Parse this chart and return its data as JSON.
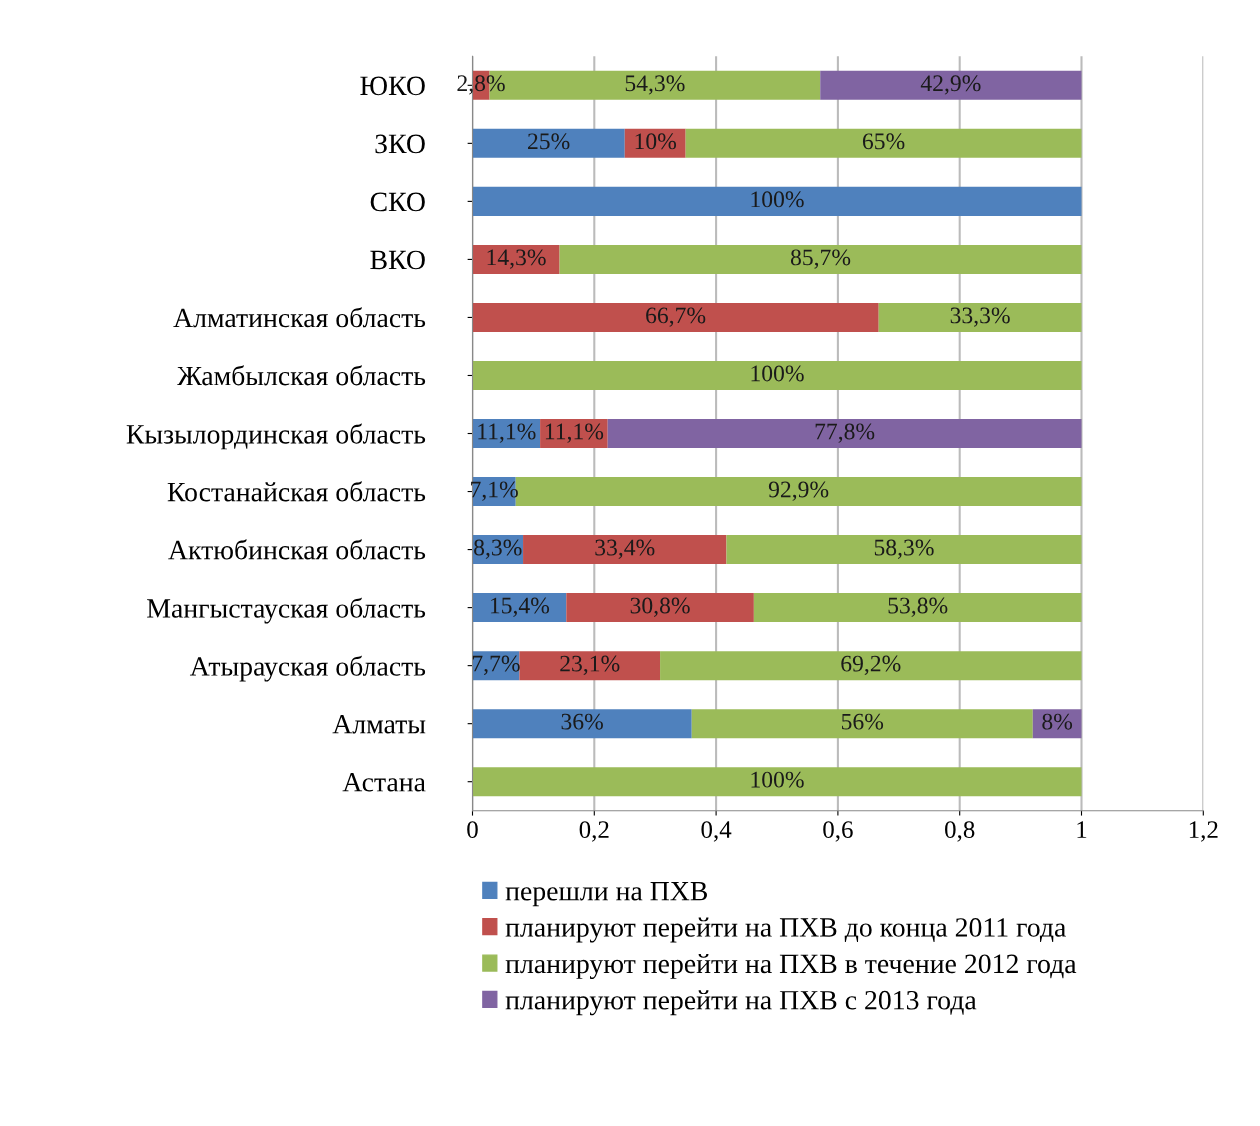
{
  "chart_data": {
    "type": "bar",
    "orientation": "horizontal",
    "stacked": true,
    "grid": "x",
    "legend": "bottom",
    "categories": [
      "ЮКО",
      "ЗКО",
      "СКО",
      "ВКО",
      "Алматинская область",
      "Жамбылская область",
      "Кызылординская область",
      "Костанайская область",
      "Актюбинская область",
      "Мангыстауская область",
      "Атырауская область",
      "Алматы",
      "Астана"
    ],
    "xlim": [
      0,
      1.2
    ],
    "xticks": [
      {
        "value": 0,
        "label": "0"
      },
      {
        "value": 0.2,
        "label": "0,2"
      },
      {
        "value": 0.4,
        "label": "0,4"
      },
      {
        "value": 0.6,
        "label": "0,6"
      },
      {
        "value": 0.8,
        "label": "0,8"
      },
      {
        "value": 1,
        "label": "1"
      },
      {
        "value": 1.2,
        "label": "1,2"
      }
    ],
    "series": [
      {
        "name": "перешли на ПХВ",
        "color": "#4f81bd",
        "values": [
          0,
          0.25,
          1,
          0,
          0,
          0,
          0.111,
          0.071,
          0.083,
          0.154,
          0.077,
          0.36,
          0
        ],
        "value_labels": [
          null,
          "25%",
          "100%",
          null,
          null,
          null,
          "11,1%",
          "7,1%",
          "8,3%",
          "15,4%",
          "7,7%",
          "36%",
          null
        ]
      },
      {
        "name": "планируют перейти на ПХВ до конца 2011 года",
        "color": "#c0504d",
        "values": [
          0.028,
          0.1,
          0,
          0.143,
          0.667,
          0,
          0.111,
          0,
          0.334,
          0.308,
          0.231,
          0,
          0
        ],
        "value_labels": [
          "2,8%",
          "10%",
          null,
          "14,3%",
          "66,7%",
          null,
          "11,1%",
          null,
          "33,4%",
          "30,8%",
          "23,1%",
          null,
          null
        ]
      },
      {
        "name": "планируют перейти на ПХВ в течение 2012 года",
        "color": "#9bbb59",
        "values": [
          0.543,
          0.65,
          0,
          0.857,
          0.333,
          1,
          0,
          0.929,
          0.583,
          0.538,
          0.692,
          0.56,
          1
        ],
        "value_labels": [
          "54,3%",
          "65%",
          null,
          "85,7%",
          "33,3%",
          "100%",
          null,
          "92,9%",
          "58,3%",
          "53,8%",
          "69,2%",
          "56%",
          "100%"
        ]
      },
      {
        "name": "планируют перейти на ПХВ с 2013 года",
        "color": "#8064a2",
        "values": [
          0.429,
          0,
          0,
          0,
          0,
          0,
          0.778,
          0,
          0,
          0,
          0,
          0.08,
          0
        ],
        "value_labels": [
          "42,9%",
          null,
          null,
          null,
          null,
          null,
          "77,8%",
          null,
          null,
          null,
          null,
          "8%",
          null
        ]
      }
    ]
  }
}
